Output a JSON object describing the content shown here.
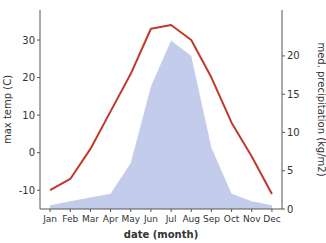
{
  "chart_data": {
    "type": "line",
    "xlabel": "date (month)",
    "ylabel": "max temp (C)",
    "y2label": "med. precipitation (kg/m2)",
    "categories": [
      "Jan",
      "Feb",
      "Mar",
      "Apr",
      "May",
      "Jun",
      "Jul",
      "Aug",
      "Sep",
      "Oct",
      "Nov",
      "Dec"
    ],
    "series": [
      {
        "type": "area",
        "axis": "y2",
        "color": "#b8c4e8",
        "values": [
          0.5,
          1,
          1.5,
          2,
          6,
          16,
          22,
          20,
          8,
          2,
          1,
          0.5
        ]
      },
      {
        "type": "line",
        "color": "#c0392b",
        "values": [
          -10,
          -7,
          1,
          11,
          21,
          33,
          34,
          30,
          20,
          8,
          -1,
          -11
        ]
      }
    ],
    "ylim": [
      -15,
      38
    ],
    "yticks": [
      -10,
      0,
      10,
      20,
      30
    ],
    "y2lim": [
      0,
      26
    ],
    "y2ticks": [
      0,
      5,
      10,
      15,
      20
    ],
    "grid": false
  }
}
